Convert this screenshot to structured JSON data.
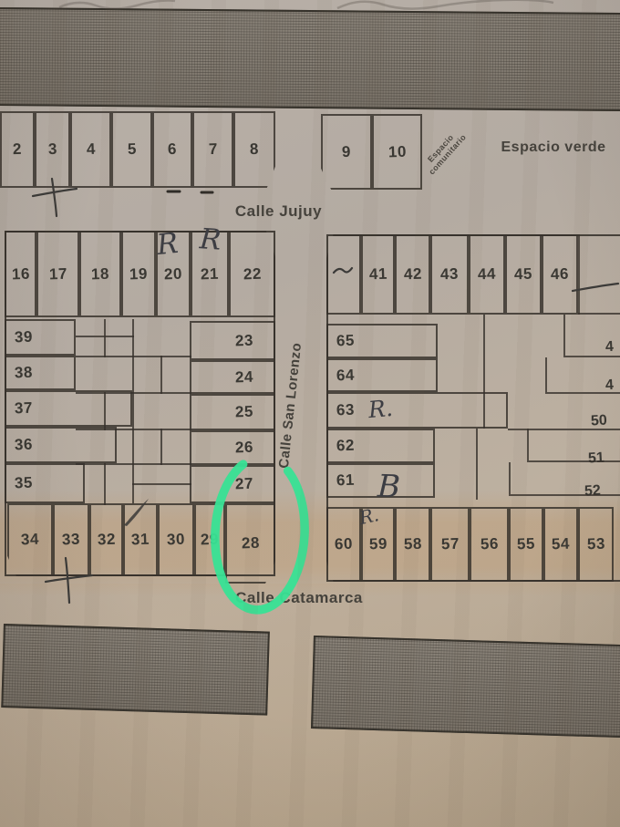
{
  "photo": {
    "paper_color": "#b5ada3",
    "ink_color": "#3f3d38",
    "marker_color": "#38e295",
    "street_band_color": "#7d766c"
  },
  "streets": {
    "top": "Calle Jujuy",
    "vertical": "Calle San Lorenzo",
    "bottom": "Calle Catamarca"
  },
  "green_space_label": "Espacio verde",
  "community_space": {
    "line1": "Espacio",
    "line2": "comunitario"
  },
  "lots": {
    "top_row_left": [
      "2",
      "3",
      "4",
      "5",
      "6",
      "7",
      "8"
    ],
    "top_row_right": [
      "9",
      "10"
    ],
    "west_block": {
      "north_row": [
        "16",
        "17",
        "18",
        "19",
        "20",
        "21",
        "22"
      ],
      "west_column": [
        "39",
        "38",
        "37",
        "36",
        "35"
      ],
      "east_column": [
        "23",
        "24",
        "25",
        "26",
        "27"
      ],
      "south_row": [
        "34",
        "33",
        "32",
        "31",
        "30",
        "29",
        "28"
      ]
    },
    "east_block": {
      "north_row": [
        "",
        "41",
        "42",
        "43",
        "44",
        "45",
        "46"
      ],
      "west_column": [
        "65",
        "64",
        "63",
        "62",
        "61"
      ],
      "east_edge_partial": [
        "4",
        "4",
        "50",
        "51",
        "52"
      ],
      "south_row": [
        "60",
        "59",
        "58",
        "57",
        "56",
        "55",
        "54",
        "53"
      ]
    }
  },
  "handwritten": {
    "above_lot_20": "R",
    "above_lot_21": "R",
    "on_lot_63": "R.",
    "on_lot_61": "B",
    "above_lot_59": "R.",
    "circled_lot": "28"
  }
}
